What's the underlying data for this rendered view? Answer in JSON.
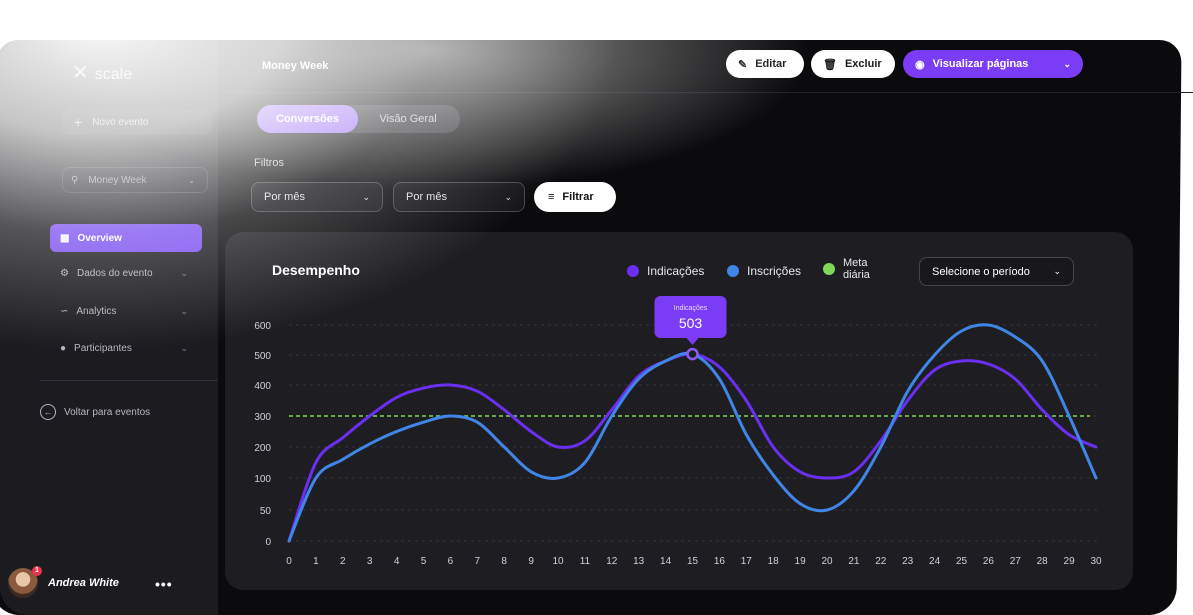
{
  "app": {
    "logo_mark": "✕",
    "logo": "scale"
  },
  "sidebar": {
    "new_event": "Novo evento",
    "event_select": "Money Week",
    "items": [
      {
        "label": "Overview",
        "active": true
      },
      {
        "label": "Dados do evento"
      },
      {
        "label": "Analytics"
      },
      {
        "label": "Participantes"
      }
    ],
    "back": "Voltar para eventos",
    "user": {
      "name": "Andrea White",
      "badge": "1",
      "more": "•••"
    }
  },
  "header": {
    "title": "Money Week",
    "edit": "Editar",
    "delete": "Excluir",
    "view": "Visualizar páginas"
  },
  "tabs": [
    {
      "label": "Conversões",
      "active": true
    },
    {
      "label": "Visão Geral"
    }
  ],
  "filters": {
    "label": "Filtros",
    "select1": "Por mês",
    "select2": "Por mês",
    "button": "Filtrar"
  },
  "panel": {
    "title": "Desempenho",
    "period": "Selecione o período"
  },
  "tooltip": {
    "label": "Indicações",
    "value": "503"
  },
  "colors": {
    "accent": "#7a3df5",
    "indicacoes": "#6a2ff0",
    "inscricoes": "#3f86e6",
    "meta": "#7ed957"
  },
  "chart_data": {
    "type": "line",
    "x": [
      0,
      1,
      2,
      3,
      4,
      5,
      6,
      7,
      8,
      9,
      10,
      11,
      12,
      13,
      14,
      15,
      16,
      17,
      18,
      19,
      20,
      21,
      22,
      23,
      24,
      25,
      26,
      27,
      28,
      29,
      30
    ],
    "x_ticks": [
      "0",
      "1",
      "2",
      "3",
      "4",
      "5",
      "6",
      "7",
      "8",
      "9",
      "10",
      "11",
      "12",
      "13",
      "14",
      "15",
      "16",
      "17",
      "18",
      "19",
      "20",
      "21",
      "22",
      "23",
      "24",
      "25",
      "26",
      "27",
      "28",
      "29",
      "30"
    ],
    "y_ticks": [
      "0",
      "50",
      "100",
      "200",
      "300",
      "400",
      "500",
      "600"
    ],
    "series": [
      {
        "name": "Indicações",
        "values": [
          0,
          150,
          230,
          300,
          360,
          390,
          400,
          380,
          320,
          250,
          200,
          220,
          320,
          430,
          480,
          503,
          460,
          350,
          200,
          120,
          100,
          120,
          220,
          350,
          450,
          480,
          470,
          420,
          320,
          240,
          200
        ]
      },
      {
        "name": "Inscrições",
        "values": [
          0,
          100,
          160,
          210,
          250,
          280,
          300,
          280,
          200,
          120,
          100,
          150,
          300,
          420,
          480,
          503,
          420,
          240,
          110,
          60,
          50,
          80,
          200,
          380,
          500,
          580,
          600,
          560,
          480,
          300,
          100
        ]
      }
    ],
    "reference_line": {
      "name": "Meta diária",
      "value": 300
    },
    "legend_position": "top-right",
    "grid": true
  }
}
